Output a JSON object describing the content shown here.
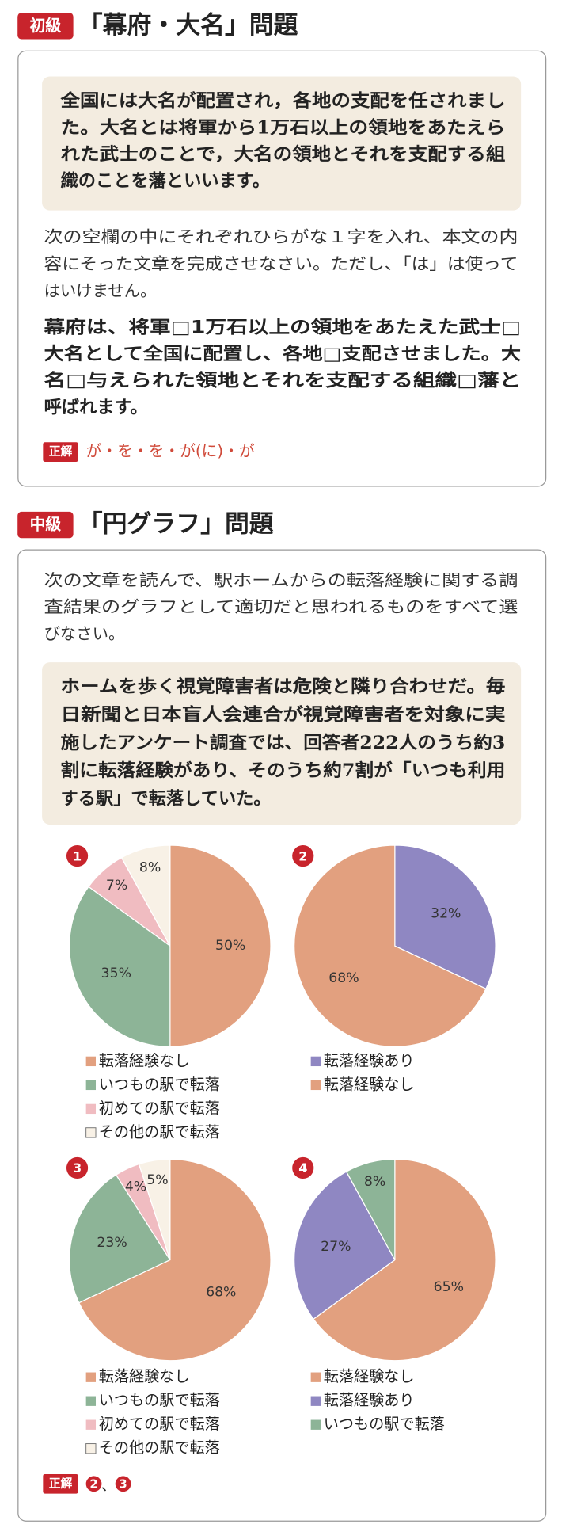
{
  "beginner": {
    "level": "初級",
    "title": "「幕府・大名」問題",
    "passage": [
      "全国には大名が配置され，各地の支配を任されまし",
      "た。大名とは将軍から1万石以上の領地をあたえら",
      "れた武士のことで，大名の領地とそれを支配する組",
      "織のことを藩といいます。"
    ],
    "question": [
      "次の空欄の中にそれぞれひらがな１字を入れ、本文の内",
      "容にそった文章を完成させなさい。ただし、「は」は使って",
      "はいけません。"
    ],
    "exercise": [
      "幕府は、将軍□1万石以上の領地をあたえた武士□",
      "大名として全国に配置し、各地□支配させました。大",
      "名□与えられた領地とそれを支配する組織□藩と",
      "呼ばれます。"
    ],
    "answer_label": "正解",
    "answer": "が・を・を・が(に)・が"
  },
  "intermediate": {
    "level": "中級",
    "title": "「円グラフ」問題",
    "question": [
      "次の文章を読んで、駅ホームからの転落経験に関する調",
      "査結果のグラフとして適切だと思われるものをすべて選",
      "びなさい。"
    ],
    "passage": [
      "ホームを歩く視覚障害者は危険と隣り合わせだ。毎",
      "日新聞と日本盲人会連合が視覚障害者を対象に実",
      "施したアンケート調査では、回答者222人のうち約3",
      "割に転落経験があり、そのうち約7割が「いつも利用",
      "する駅」で転落していた。"
    ],
    "answer_label": "正解",
    "answer": [
      "2",
      "3"
    ],
    "answer_separator": "、"
  },
  "chart_data": [
    {
      "type": "pie",
      "marker": "1",
      "categories": [
        "転落経験なし",
        "いつもの駅で転落",
        "初めての駅で転落",
        "その他の駅で転落"
      ],
      "values": [
        50,
        35,
        7,
        8
      ],
      "value_labels": [
        "50%",
        "35%",
        "7%",
        "8%"
      ],
      "colors": [
        "#e2a07f",
        "#8db497",
        "#f0bcc1",
        "#f8f1e6"
      ]
    },
    {
      "type": "pie",
      "marker": "2",
      "categories": [
        "転落経験あり",
        "転落経験なし"
      ],
      "values": [
        32,
        68
      ],
      "value_labels": [
        "32%",
        "68%"
      ],
      "colors": [
        "#8f87c2",
        "#e2a07f"
      ]
    },
    {
      "type": "pie",
      "marker": "3",
      "categories": [
        "転落経験なし",
        "いつもの駅で転落",
        "初めての駅で転落",
        "その他の駅で転落"
      ],
      "values": [
        68,
        23,
        4,
        5
      ],
      "value_labels": [
        "68%",
        "23%",
        "4%",
        "5%"
      ],
      "colors": [
        "#e2a07f",
        "#8db497",
        "#f0bcc1",
        "#f8f1e6"
      ]
    },
    {
      "type": "pie",
      "marker": "4",
      "categories": [
        "転落経験なし",
        "転落経験あり",
        "いつもの駅で転落"
      ],
      "values": [
        65,
        27,
        8
      ],
      "value_labels": [
        "65%",
        "27%",
        "8%"
      ],
      "colors": [
        "#e2a07f",
        "#8f87c2",
        "#8db497"
      ]
    }
  ]
}
